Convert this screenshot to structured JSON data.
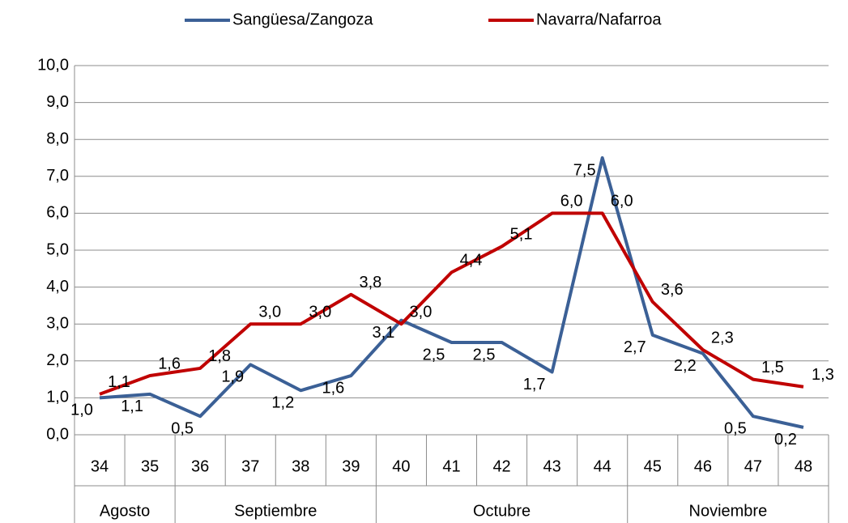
{
  "chart_data": {
    "type": "line",
    "categories": [
      "34",
      "35",
      "36",
      "37",
      "38",
      "39",
      "40",
      "41",
      "42",
      "43",
      "44",
      "45",
      "46",
      "47",
      "48"
    ],
    "category_groups": [
      {
        "name": "Agosto",
        "count": 2
      },
      {
        "name": "Septiembre",
        "count": 4
      },
      {
        "name": "Octubre",
        "count": 5
      },
      {
        "name": "Noviembre",
        "count": 4
      }
    ],
    "series": [
      {
        "name": "Sangüesa/Zangoza",
        "color": "#3b6096",
        "values": [
          1.0,
          1.1,
          0.5,
          1.9,
          1.2,
          1.6,
          3.1,
          2.5,
          2.5,
          1.7,
          7.5,
          2.7,
          2.2,
          0.5,
          0.2
        ],
        "value_labels": [
          "1,0",
          "1,1",
          "0,5",
          "1,9",
          "1,2",
          "1,6",
          "3,1",
          "2,5",
          "2,5",
          "1,7",
          "7,5",
          "2,7",
          "2,2",
          "0,5",
          "0,2"
        ]
      },
      {
        "name": "Navarra/Nafarroa",
        "color": "#c00000",
        "values": [
          1.1,
          1.6,
          1.8,
          3.0,
          3.0,
          3.8,
          3.0,
          4.4,
          5.1,
          6.0,
          6.0,
          3.6,
          2.3,
          1.5,
          1.3
        ],
        "value_labels": [
          "1,1",
          "1,6",
          "1,8",
          "3,0",
          "3,0",
          "3,8",
          "3,0",
          "4,4",
          "5,1",
          "6,0",
          "6,0",
          "3,6",
          "2,3",
          "1,5",
          "1,3"
        ]
      }
    ],
    "ylim": [
      0,
      10
    ],
    "yticks": [
      {
        "value": 0,
        "label": "0,0"
      },
      {
        "value": 1,
        "label": "1,0"
      },
      {
        "value": 2,
        "label": "2,0"
      },
      {
        "value": 3,
        "label": "3,0"
      },
      {
        "value": 4,
        "label": "4,0"
      },
      {
        "value": 5,
        "label": "5,0"
      },
      {
        "value": 6,
        "label": "6,0"
      },
      {
        "value": 7,
        "label": "7,0"
      },
      {
        "value": 8,
        "label": "8,0"
      },
      {
        "value": 9,
        "label": "9,0"
      },
      {
        "value": 10,
        "label": "10,0"
      }
    ],
    "grid": true,
    "legend": "top"
  }
}
